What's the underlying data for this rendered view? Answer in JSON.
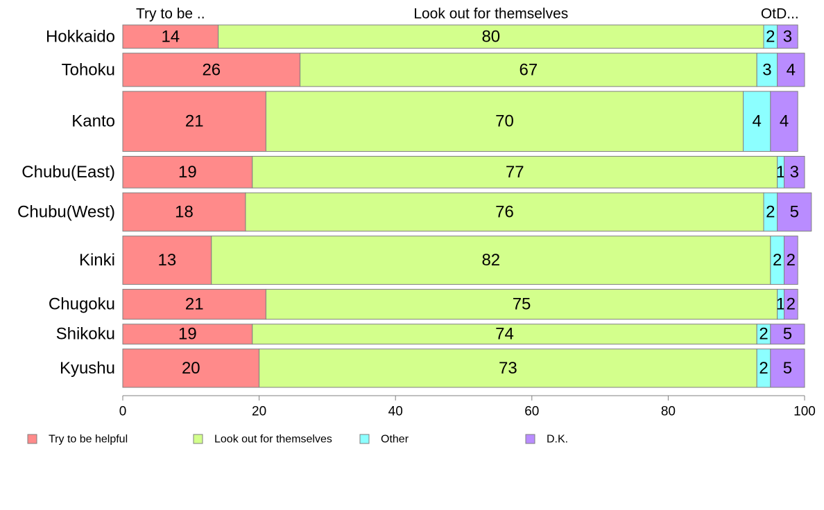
{
  "chart_data": {
    "type": "bar",
    "orientation": "horizontal",
    "stacked": true,
    "categories": [
      "Hokkaido",
      "Tohoku",
      "Kanto",
      "Chubu(East)",
      "Chubu(West)",
      "Kinki",
      "Chugoku",
      "Shikoku",
      "Kyushu"
    ],
    "category_weights": [
      0.7,
      1.0,
      1.8,
      0.95,
      1.15,
      1.45,
      0.9,
      0.6,
      1.15
    ],
    "series": [
      {
        "name": "Try to be helpful",
        "color": "#ff8a8a",
        "values": [
          14,
          26,
          21,
          19,
          18,
          13,
          21,
          19,
          20
        ],
        "data_labels": [
          "14",
          "26",
          "21",
          "19",
          "18",
          "13",
          "21",
          "19",
          "20"
        ]
      },
      {
        "name": "Look out for themselves",
        "color": "#d3ff8c",
        "values": [
          80,
          67,
          70,
          77,
          76,
          82,
          75,
          74,
          73
        ],
        "data_labels": [
          "80",
          "67",
          "70",
          "77",
          "76",
          "82",
          "75",
          "74",
          "73"
        ]
      },
      {
        "name": "Other",
        "color": "#8cffff",
        "values": [
          2,
          3,
          4,
          1,
          2,
          2,
          1,
          2,
          2
        ],
        "data_labels": [
          "2",
          "3",
          "4",
          "1",
          "2",
          "2",
          "1",
          "2",
          "2"
        ]
      },
      {
        "name": "D.K.",
        "color": "#b98cff",
        "values": [
          3,
          4,
          4,
          3,
          5,
          2,
          2,
          5,
          5
        ],
        "data_labels": [
          "3",
          "4",
          "4",
          "3",
          "5",
          "2",
          "2",
          "5",
          "5"
        ]
      }
    ],
    "top_labels": [
      "Try to be ..",
      "Look out for themselves",
      "Ot.",
      "D..."
    ],
    "xlim": [
      0,
      100
    ],
    "xticks": [
      0,
      20,
      40,
      60,
      80,
      100
    ],
    "xtick_labels": [
      "0",
      "20",
      "40",
      "60",
      "80",
      "100"
    ],
    "grid": false,
    "legend_position": "bottom",
    "title": "",
    "xlabel": "",
    "ylabel": ""
  }
}
